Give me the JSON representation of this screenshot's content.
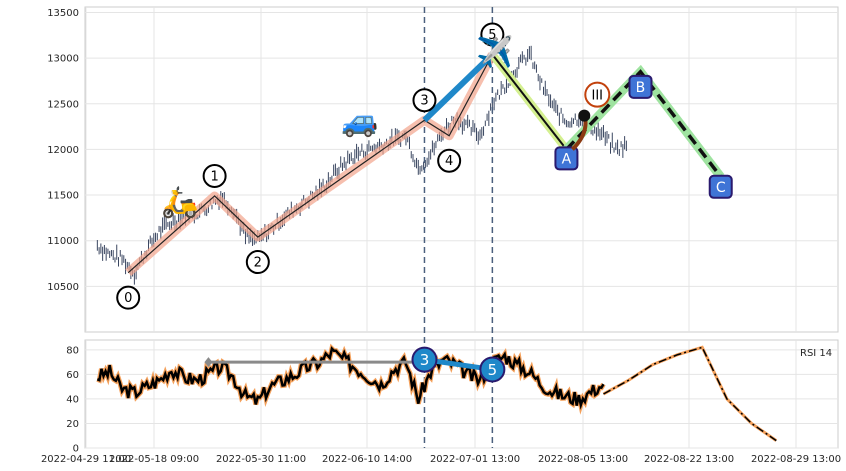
{
  "chart_data": [
    {
      "type": "candlestick",
      "title": "",
      "xlabel": "",
      "ylabel": "",
      "ylim": [
        10000,
        13560
      ],
      "x_ticks": [
        "2022-04-29 11:00",
        "2022-05-18 09:00",
        "2022-05-30 11:00",
        "2022-06-10 14:00",
        "2022-07-01 13:00",
        "2022-08-05 13:00",
        "2022-08-22 13:00",
        "2022-08-29 13:00"
      ],
      "y_ticks": [
        "10500",
        "11000",
        "11500",
        "12000",
        "12500",
        "13000",
        "13500"
      ],
      "grid": true,
      "series": [
        {
          "kind": "price",
          "x": [
            "2022-05-01",
            "2022-05-03",
            "2022-05-05",
            "2022-05-07",
            "2022-05-09",
            "2022-05-11",
            "2022-05-13",
            "2022-05-15",
            "2022-05-17",
            "2022-05-19",
            "2022-05-21",
            "2022-05-23",
            "2022-05-25",
            "2022-05-27",
            "2022-05-29",
            "2022-05-31",
            "2022-06-02",
            "2022-06-04",
            "2022-06-06",
            "2022-06-08",
            "2022-06-10",
            "2022-06-12",
            "2022-06-14",
            "2022-06-16",
            "2022-06-18",
            "2022-06-20",
            "2022-06-22",
            "2022-06-24",
            "2022-06-26",
            "2022-06-28",
            "2022-06-30",
            "2022-07-02",
            "2022-07-04",
            "2022-07-06",
            "2022-07-08",
            "2022-07-10",
            "2022-07-12",
            "2022-07-14",
            "2022-07-16",
            "2022-07-18",
            "2022-07-20",
            "2022-07-22",
            "2022-07-24",
            "2022-07-26"
          ],
          "values": [
            10950,
            10850,
            10800,
            10650,
            10900,
            11100,
            11200,
            11280,
            11300,
            11380,
            11480,
            11350,
            11050,
            11000,
            11120,
            11250,
            11350,
            11450,
            11550,
            11700,
            11850,
            11950,
            12000,
            12050,
            12100,
            12150,
            11800,
            11950,
            12200,
            12350,
            12250,
            12150,
            12500,
            12700,
            12900,
            13050,
            12700,
            12450,
            12300,
            12350,
            12250,
            12150,
            12000,
            12050
          ]
        },
        {
          "kind": "elliott-wave",
          "labels": [
            "0",
            "1",
            "2",
            "3",
            "4",
            "5"
          ],
          "x": [
            "2022-05-06",
            "2022-05-20",
            "2022-05-27",
            "2022-06-23",
            "2022-06-27",
            "2022-07-04"
          ],
          "values": [
            10650,
            11490,
            11040,
            12320,
            12150,
            13040
          ]
        },
        {
          "kind": "correction-actual",
          "labels": [
            "5",
            "A"
          ],
          "x": [
            "2022-07-04",
            "2022-07-16"
          ],
          "values": [
            13040,
            12000
          ]
        },
        {
          "kind": "correction-projected",
          "labels": [
            "A",
            "B",
            "C"
          ],
          "x": [
            "2022-07-16",
            "2022-07-28",
            "2022-08-10"
          ],
          "values": [
            12000,
            12850,
            11700
          ]
        },
        {
          "kind": "marker",
          "labels": [
            "III"
          ],
          "x": [
            "2022-07-21"
          ],
          "values": [
            12600
          ]
        }
      ],
      "emojis": [
        "🛵",
        "🚙",
        "✈️"
      ]
    },
    {
      "type": "line",
      "title": "",
      "legend": "RSI 14",
      "ylim": [
        0,
        88
      ],
      "y_ticks": [
        "0",
        "20",
        "40",
        "60",
        "80"
      ],
      "series": [
        {
          "kind": "rsi",
          "x": [
            "2022-05-01",
            "2022-05-03",
            "2022-05-05",
            "2022-05-07",
            "2022-05-09",
            "2022-05-11",
            "2022-05-13",
            "2022-05-15",
            "2022-05-17",
            "2022-05-19",
            "2022-05-21",
            "2022-05-23",
            "2022-05-25",
            "2022-05-27",
            "2022-05-29",
            "2022-05-31",
            "2022-06-02",
            "2022-06-04",
            "2022-06-06",
            "2022-06-08",
            "2022-06-10",
            "2022-06-12",
            "2022-06-14",
            "2022-06-16",
            "2022-06-18",
            "2022-06-20",
            "2022-06-22",
            "2022-06-24",
            "2022-06-26",
            "2022-06-28",
            "2022-06-30",
            "2022-07-02",
            "2022-07-04",
            "2022-07-06",
            "2022-07-08",
            "2022-07-10",
            "2022-07-12",
            "2022-07-14",
            "2022-07-16",
            "2022-07-18",
            "2022-07-20",
            "2022-07-22"
          ],
          "values": [
            58,
            62,
            48,
            45,
            50,
            55,
            64,
            58,
            55,
            60,
            66,
            58,
            42,
            38,
            50,
            55,
            60,
            66,
            70,
            78,
            72,
            65,
            58,
            52,
            64,
            70,
            40,
            62,
            72,
            68,
            60,
            55,
            70,
            75,
            68,
            62,
            52,
            45,
            42,
            40,
            46,
            52
          ]
        },
        {
          "kind": "rsi-projection",
          "x": [
            "2022-07-22",
            "2022-07-26",
            "2022-07-30",
            "2022-08-03",
            "2022-08-07",
            "2022-08-11",
            "2022-08-15",
            "2022-08-19"
          ],
          "values": [
            44,
            55,
            68,
            76,
            82,
            40,
            20,
            6
          ]
        },
        {
          "kind": "rsi-level",
          "x": [
            "2022-05-19",
            "2022-06-25"
          ],
          "values": [
            70,
            70
          ]
        },
        {
          "kind": "rsi-wave",
          "labels": [
            "3",
            "5"
          ],
          "x": [
            "2022-06-23",
            "2022-07-04"
          ],
          "values": [
            72,
            64
          ]
        }
      ]
    }
  ]
}
